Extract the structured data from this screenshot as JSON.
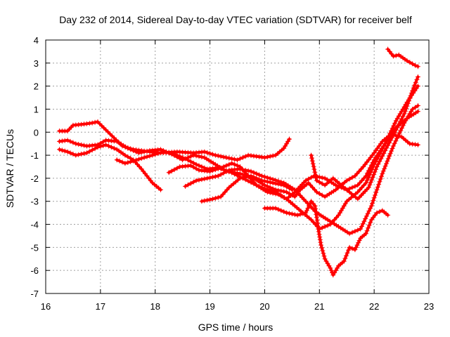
{
  "chart_data": {
    "type": "scatter",
    "title": "Day 232 of 2014, Sidereal Day-to-day VTEC variation (SDTVAR) for receiver belf",
    "xlabel": "GPS time / hours",
    "ylabel": "SDTVAR / TECUs",
    "xlim": [
      16,
      23
    ],
    "ylim": [
      -7,
      4
    ],
    "xticks": [
      "16",
      "17",
      "18",
      "19",
      "20",
      "21",
      "22",
      "23"
    ],
    "yticks": [
      "-7",
      "-6",
      "-5",
      "-4",
      "-3",
      "-2",
      "-1",
      "0",
      "1",
      "2",
      "3",
      "4"
    ],
    "grid": true,
    "marker": "+",
    "color": "#ff0000",
    "series": [
      {
        "name": "track-1",
        "points": [
          [
            16.25,
            0.05
          ],
          [
            16.4,
            0.05
          ],
          [
            16.5,
            0.3
          ],
          [
            16.7,
            0.35
          ],
          [
            16.85,
            0.4
          ],
          [
            16.95,
            0.45
          ],
          [
            17.1,
            0.1
          ],
          [
            17.25,
            -0.25
          ],
          [
            17.4,
            -0.6
          ],
          [
            17.6,
            -0.75
          ],
          [
            17.9,
            -0.85
          ],
          [
            18.1,
            -0.9
          ],
          [
            18.4,
            -0.85
          ],
          [
            18.7,
            -0.9
          ],
          [
            18.9,
            -0.85
          ],
          [
            19.1,
            -1.0
          ],
          [
            19.3,
            -1.1
          ],
          [
            19.5,
            -1.2
          ],
          [
            19.7,
            -1.0
          ],
          [
            20.0,
            -1.1
          ],
          [
            20.2,
            -1.0
          ],
          [
            20.35,
            -0.7
          ],
          [
            20.45,
            -0.3
          ]
        ]
      },
      {
        "name": "track-2",
        "points": [
          [
            16.25,
            -0.4
          ],
          [
            16.4,
            -0.35
          ],
          [
            16.55,
            -0.5
          ],
          [
            16.75,
            -0.6
          ],
          [
            16.95,
            -0.55
          ],
          [
            17.1,
            -0.35
          ],
          [
            17.3,
            -0.4
          ],
          [
            17.5,
            -0.7
          ],
          [
            17.7,
            -0.9
          ],
          [
            17.9,
            -0.8
          ],
          [
            18.1,
            -0.75
          ],
          [
            18.3,
            -0.95
          ],
          [
            18.5,
            -1.2
          ],
          [
            18.7,
            -1.0
          ],
          [
            18.9,
            -1.1
          ],
          [
            19.1,
            -1.4
          ],
          [
            19.3,
            -1.7
          ],
          [
            19.55,
            -1.8
          ],
          [
            19.8,
            -2.0
          ],
          [
            20.0,
            -2.3
          ],
          [
            20.2,
            -2.5
          ],
          [
            20.4,
            -2.6
          ],
          [
            20.55,
            -2.8
          ],
          [
            20.65,
            -2.5
          ],
          [
            20.8,
            -2.2
          ],
          [
            20.95,
            -2.6
          ],
          [
            21.1,
            -2.8
          ],
          [
            21.3,
            -2.5
          ],
          [
            21.5,
            -2.1
          ],
          [
            21.65,
            -1.9
          ],
          [
            21.8,
            -1.5
          ],
          [
            22.0,
            -0.9
          ],
          [
            22.15,
            -0.4
          ],
          [
            22.3,
            -0.1
          ],
          [
            22.5,
            -0.2
          ],
          [
            22.65,
            -0.5
          ],
          [
            22.8,
            -0.55
          ]
        ]
      },
      {
        "name": "track-3",
        "points": [
          [
            16.25,
            -0.75
          ],
          [
            16.4,
            -0.85
          ],
          [
            16.55,
            -1.0
          ],
          [
            16.75,
            -0.9
          ],
          [
            16.95,
            -0.65
          ],
          [
            17.1,
            -0.55
          ],
          [
            17.3,
            -0.75
          ],
          [
            17.45,
            -1.0
          ],
          [
            17.6,
            -1.2
          ],
          [
            17.75,
            -1.6
          ],
          [
            17.95,
            -2.2
          ],
          [
            18.1,
            -2.5
          ]
        ]
      },
      {
        "name": "track-4",
        "points": [
          [
            17.3,
            -1.2
          ],
          [
            17.45,
            -1.35
          ],
          [
            17.6,
            -1.25
          ],
          [
            17.8,
            -1.1
          ],
          [
            17.95,
            -1.0
          ],
          [
            18.15,
            -0.85
          ],
          [
            18.35,
            -0.95
          ],
          [
            18.55,
            -1.15
          ],
          [
            18.75,
            -1.4
          ],
          [
            18.95,
            -1.6
          ],
          [
            19.15,
            -1.55
          ],
          [
            19.35,
            -1.7
          ],
          [
            19.6,
            -2.0
          ],
          [
            19.85,
            -2.3
          ],
          [
            20.05,
            -2.6
          ],
          [
            20.25,
            -2.7
          ],
          [
            20.4,
            -2.9
          ],
          [
            20.55,
            -2.6
          ],
          [
            20.75,
            -2.1
          ],
          [
            20.9,
            -1.9
          ],
          [
            21.1,
            -2.0
          ],
          [
            21.3,
            -2.3
          ],
          [
            21.5,
            -2.5
          ],
          [
            21.7,
            -2.3
          ],
          [
            21.85,
            -1.9
          ],
          [
            22.0,
            -1.2
          ],
          [
            22.2,
            -0.5
          ],
          [
            22.4,
            0.2
          ],
          [
            22.6,
            0.6
          ],
          [
            22.8,
            0.9
          ]
        ]
      },
      {
        "name": "track-5",
        "points": [
          [
            18.25,
            -1.75
          ],
          [
            18.45,
            -1.5
          ],
          [
            18.65,
            -1.45
          ],
          [
            18.8,
            -1.65
          ],
          [
            19.0,
            -1.7
          ],
          [
            19.2,
            -1.55
          ],
          [
            19.4,
            -1.35
          ],
          [
            19.55,
            -1.5
          ],
          [
            19.7,
            -1.9
          ],
          [
            19.85,
            -2.3
          ],
          [
            20.0,
            -2.45
          ],
          [
            20.2,
            -2.6
          ],
          [
            20.4,
            -2.9
          ],
          [
            20.55,
            -3.2
          ],
          [
            20.7,
            -3.5
          ],
          [
            20.85,
            -3.8
          ],
          [
            21.0,
            -4.2
          ],
          [
            21.2,
            -4.0
          ],
          [
            21.35,
            -3.6
          ],
          [
            21.5,
            -3.0
          ],
          [
            21.7,
            -2.6
          ],
          [
            21.85,
            -2.2
          ],
          [
            22.0,
            -1.4
          ],
          [
            22.2,
            -0.5
          ],
          [
            22.4,
            0.5
          ],
          [
            22.6,
            1.3
          ],
          [
            22.8,
            2.0
          ]
        ]
      },
      {
        "name": "track-6",
        "points": [
          [
            18.55,
            -2.35
          ],
          [
            18.75,
            -2.1
          ],
          [
            18.95,
            -2.0
          ],
          [
            19.15,
            -1.9
          ],
          [
            19.35,
            -1.65
          ],
          [
            19.55,
            -1.6
          ],
          [
            19.75,
            -1.7
          ],
          [
            19.95,
            -1.9
          ],
          [
            20.15,
            -2.05
          ],
          [
            20.35,
            -2.2
          ],
          [
            20.55,
            -2.5
          ],
          [
            20.75,
            -3.0
          ],
          [
            20.95,
            -3.5
          ],
          [
            21.15,
            -3.8
          ],
          [
            21.35,
            -4.1
          ],
          [
            21.55,
            -4.4
          ],
          [
            21.75,
            -4.2
          ],
          [
            21.95,
            -3.2
          ],
          [
            22.15,
            -1.8
          ],
          [
            22.35,
            -0.6
          ],
          [
            22.55,
            0.4
          ],
          [
            22.7,
            1.0
          ],
          [
            22.8,
            1.15
          ]
        ]
      },
      {
        "name": "track-7",
        "points": [
          [
            18.85,
            -3.0
          ],
          [
            19.05,
            -2.9
          ],
          [
            19.2,
            -2.8
          ],
          [
            19.35,
            -2.4
          ],
          [
            19.55,
            -2.0
          ],
          [
            19.75,
            -1.9
          ],
          [
            19.95,
            -2.1
          ],
          [
            20.15,
            -2.2
          ],
          [
            20.35,
            -2.3
          ],
          [
            20.5,
            -2.5
          ]
        ]
      },
      {
        "name": "track-8",
        "points": [
          [
            20.0,
            -3.3
          ],
          [
            20.2,
            -3.3
          ],
          [
            20.4,
            -3.5
          ],
          [
            20.6,
            -3.6
          ],
          [
            20.75,
            -3.5
          ],
          [
            20.85,
            -3.0
          ],
          [
            20.92,
            -3.2
          ],
          [
            20.98,
            -4.2
          ],
          [
            21.03,
            -4.9
          ],
          [
            21.1,
            -5.5
          ],
          [
            21.2,
            -5.9
          ],
          [
            21.25,
            -6.2
          ],
          [
            21.35,
            -5.8
          ],
          [
            21.45,
            -5.6
          ],
          [
            21.55,
            -5.0
          ],
          [
            21.65,
            -5.1
          ],
          [
            21.75,
            -4.6
          ],
          [
            21.85,
            -4.4
          ],
          [
            21.95,
            -3.8
          ],
          [
            22.05,
            -3.5
          ],
          [
            22.15,
            -3.4
          ],
          [
            22.25,
            -3.6
          ]
        ]
      },
      {
        "name": "track-9",
        "points": [
          [
            20.85,
            -1.0
          ],
          [
            20.95,
            -2.1
          ],
          [
            21.1,
            -2.3
          ],
          [
            21.25,
            -2.0
          ],
          [
            21.4,
            -2.3
          ],
          [
            21.55,
            -2.6
          ],
          [
            21.7,
            -2.9
          ],
          [
            21.9,
            -2.4
          ],
          [
            22.05,
            -1.5
          ],
          [
            22.2,
            -0.8
          ],
          [
            22.4,
            0.1
          ],
          [
            22.55,
            0.8
          ],
          [
            22.7,
            1.8
          ],
          [
            22.8,
            2.4
          ]
        ]
      },
      {
        "name": "track-10",
        "points": [
          [
            22.25,
            3.6
          ],
          [
            22.35,
            3.3
          ],
          [
            22.45,
            3.35
          ],
          [
            22.6,
            3.1
          ],
          [
            22.75,
            2.9
          ],
          [
            22.8,
            2.85
          ]
        ]
      }
    ]
  }
}
